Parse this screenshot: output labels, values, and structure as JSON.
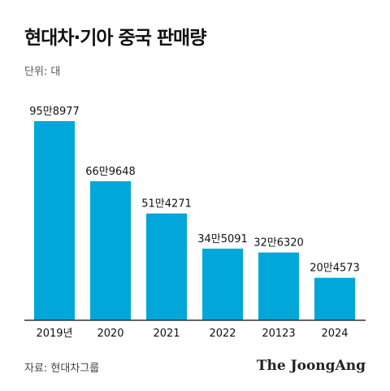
{
  "header": {
    "title": "현대차·기아 중국 판매량",
    "unit": "단위: 대"
  },
  "footer": {
    "source": "자료: 현대차그룹",
    "publisher": "The JoongAng"
  },
  "colors": {
    "bar": "#00A7D8",
    "axis": "#333333",
    "text": "#111111"
  },
  "chart_data": {
    "type": "bar",
    "title": "현대차·기아 중국 판매량",
    "xlabel": "",
    "ylabel": "",
    "unit": "대",
    "categories": [
      "2019년",
      "2020",
      "2021",
      "2022",
      "20123",
      "2024"
    ],
    "values": [
      958977,
      669648,
      514271,
      345091,
      326320,
      204573
    ],
    "data_labels": [
      "95만8977",
      "66만9648",
      "51만4271",
      "34만5091",
      "32만6320",
      "20만4573"
    ],
    "ylim": [
      0,
      958977
    ],
    "grid": false,
    "legend": "none"
  }
}
